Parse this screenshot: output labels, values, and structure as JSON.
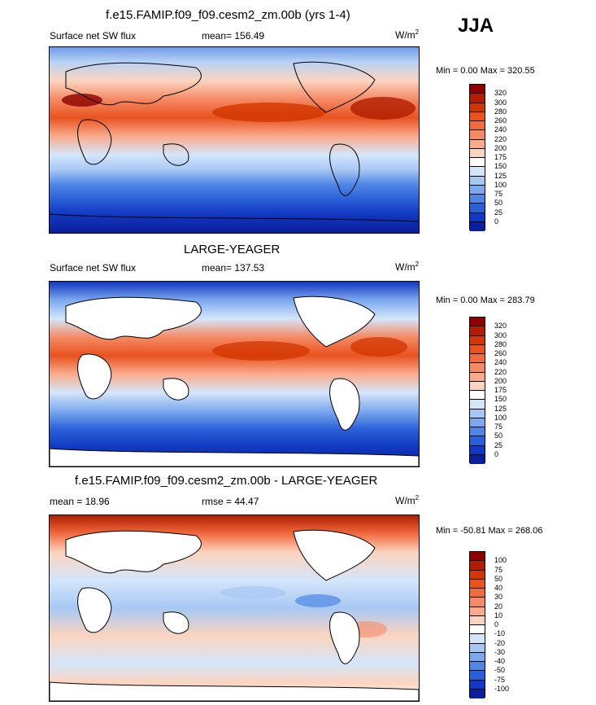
{
  "season": "JJA",
  "panels": [
    {
      "title": "f.e15.FAMIP.f09_f09.cesm2_zm.00b (yrs 1-4)",
      "left_label": "Surface net SW flux",
      "stat_label": "mean= 156.49",
      "units_label": "W/m",
      "units_sup": "2",
      "minmax": "Min =   0.00 Max = 320.55",
      "land_fill": "field"
    },
    {
      "title": "LARGE-YEAGER",
      "left_label": "Surface net SW flux",
      "stat_label": "mean= 137.53",
      "units_label": "W/m",
      "units_sup": "2",
      "minmax": "Min =   0.00 Max = 283.79",
      "land_fill": "blank"
    },
    {
      "title": "f.e15.FAMIP.f09_f09.cesm2_zm.00b - LARGE-YEAGER",
      "left_label": "mean =  18.96",
      "stat_label": "rmse =  44.47",
      "units_label": "W/m",
      "units_sup": "2",
      "minmax": "Min = -50.81 Max = 268.06",
      "land_fill": "blank"
    }
  ],
  "colorbars": {
    "flux": {
      "labels": [
        "320",
        "300",
        "280",
        "260",
        "240",
        "220",
        "200",
        "175",
        "150",
        "125",
        "100",
        "75",
        "50",
        "25",
        "0"
      ],
      "colors": [
        "#8b0000",
        "#b01d00",
        "#d23600",
        "#e8531f",
        "#f26b3f",
        "#f58a66",
        "#f9ab8c",
        "#fcd4bf",
        "#ffffff",
        "#d4e6fa",
        "#a8c8f4",
        "#7ca8ee",
        "#4f86e6",
        "#2b5fd8",
        "#1038c0",
        "#0b1f9a"
      ]
    },
    "diff": {
      "labels": [
        "100",
        "75",
        "50",
        "40",
        "30",
        "20",
        "10",
        "0",
        "-10",
        "-20",
        "-30",
        "-40",
        "-50",
        "-75",
        "-100"
      ],
      "colors": [
        "#8b0000",
        "#b01d00",
        "#d23600",
        "#e8531f",
        "#f26b3f",
        "#f58a66",
        "#f9ab8c",
        "#fcd4bf",
        "#ffffff",
        "#d4e6fa",
        "#a8c8f4",
        "#7ca8ee",
        "#4f86e6",
        "#2b5fd8",
        "#1038c0",
        "#0b1f9a"
      ]
    }
  }
}
